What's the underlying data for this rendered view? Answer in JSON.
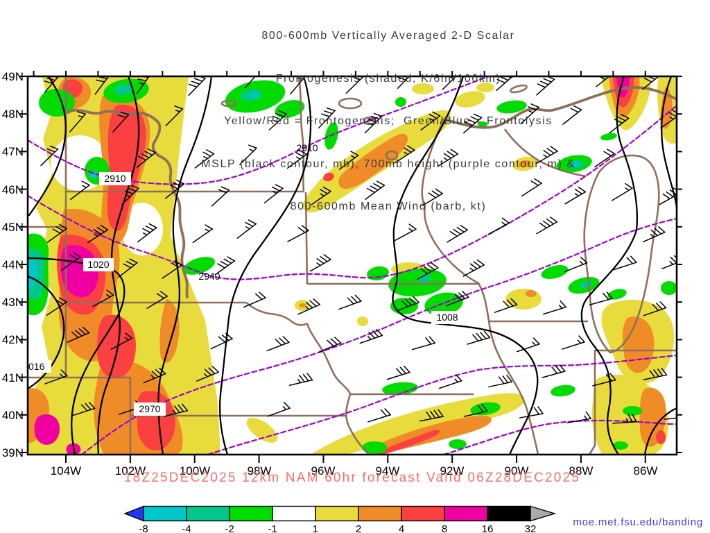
{
  "title": {
    "lines": [
      "800-600mb Vertically Averaged 2-D Scalar",
      "Frontogenesis (shaded, K/6hr/100km)",
      "Yellow/Red = Frontogenesis;  Green/Blue = Frontolysis",
      "MSLP (black contour, mb), 700mb height (purple contour, m) &",
      "800-600mb Mean Wind (barb, kt)"
    ]
  },
  "axes": {
    "lat_labels": [
      "49N",
      "48N",
      "47N",
      "46N",
      "45N",
      "44N",
      "43N",
      "42N",
      "41N",
      "40N",
      "39N"
    ],
    "lon_labels": [
      "104W",
      "102W",
      "100W",
      "98W",
      "96W",
      "94W",
      "92W",
      "90W",
      "88W",
      "86W"
    ]
  },
  "contour_labels": {
    "hgt_a": "2910",
    "hgt_b": "2910",
    "hgt_c": "2940",
    "hgt_d": "2970",
    "mslp_a": "1020",
    "mslp_b": "1008",
    "mslp_c": "016"
  },
  "footer": {
    "forecast": "18Z25DEC2025 12km NAM 60hr forecast Valid 06Z28DEC2025",
    "credit_link": "moe.met.fsu.edu/banding"
  },
  "colorbar": {
    "tick_labels": [
      "-8",
      "-4",
      "-2",
      "-1",
      "1",
      "2",
      "4",
      "8",
      "16",
      "32"
    ],
    "segment_colors": [
      "#2038f0",
      "#00c8c8",
      "#00c88c",
      "#00dc00",
      "#ffffff",
      "#e8dc3c",
      "#f08c28",
      "#fa4040",
      "#f000a2",
      "#000000",
      "#aaaaaa"
    ]
  },
  "map_palette": {
    "frontogenesis_yellow": "#e8dc3c",
    "frontogenesis_orange": "#f08c28",
    "frontogenesis_red": "#fa4040",
    "frontogenesis_magenta": "#f000a2",
    "frontolysis_green": "#00dc00",
    "frontolysis_teal": "#00c88c",
    "frontolysis_cyan": "#00c8c8",
    "mslp_contour": "#000000",
    "height_contour": "#a000d2",
    "state_borders": "#8f6f5c",
    "valid_text": "#ff6b6b",
    "link_text": "#3c3cee"
  }
}
